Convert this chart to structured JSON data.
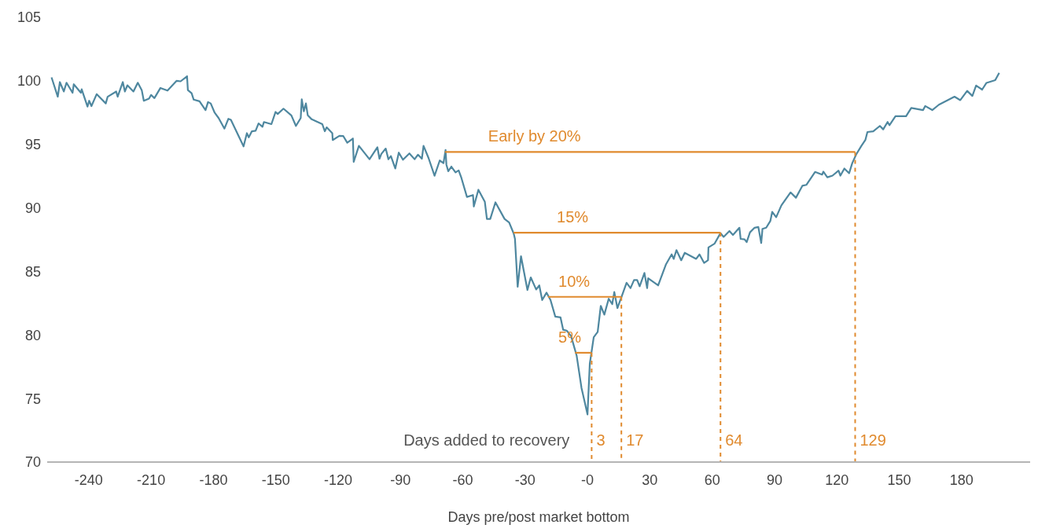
{
  "chart_data": {
    "type": "line",
    "xlabel": "Days pre/post market bottom",
    "xlim": [
      -260,
      213
    ],
    "xticks": [
      -240,
      -210,
      -180,
      -150,
      -120,
      -90,
      -60,
      -30,
      {
        "value": 0,
        "label": "-0"
      },
      30,
      60,
      90,
      120,
      150,
      180
    ],
    "ylim": [
      70,
      105
    ],
    "yticks": [
      70,
      75,
      80,
      85,
      90,
      95,
      100,
      105
    ],
    "grid": false,
    "legend": false,
    "marker": "none",
    "series": [
      {
        "color": "#4e879f",
        "line_style": "solid",
        "x": [
          -257.9,
          -254.9,
          -253.9,
          -252.0,
          -250.7,
          -247.8,
          -247.2,
          -243.8,
          -243.4,
          -240.6,
          -239.8,
          -238.7,
          -236.2,
          -231.8,
          -230.9,
          -226.8,
          -226.1,
          -223.6,
          -222.6,
          -221.4,
          -218.5,
          -216.4,
          -214.5,
          -213.5,
          -211.0,
          -210.0,
          -208.4,
          -205.5,
          -202.1,
          -197.7,
          -195.8,
          -192.7,
          -192.3,
          -190.5,
          -189.5,
          -186.7,
          -183.8,
          -182.6,
          -181.3,
          -179.4,
          -177.5,
          -174.7,
          -172.8,
          -171.6,
          -165.5,
          -163.9,
          -163.0,
          -161.5,
          -159.7,
          -158.3,
          -156.4,
          -155.7,
          -152.1,
          -150.1,
          -149.1,
          -146.3,
          -142.5,
          -140.3,
          -138.0,
          -137.5,
          -136.5,
          -135.5,
          -134.6,
          -132.7,
          -127.6,
          -126.4,
          -125.5,
          -122.8,
          -122.6,
          -119.4,
          -117.5,
          -115.6,
          -112.9,
          -112.5,
          -110.0,
          -104.9,
          -101.1,
          -100.1,
          -99.2,
          -97.1,
          -95.8,
          -94.6,
          -92.5,
          -90.8,
          -88.8,
          -85.7,
          -83.2,
          -81.6,
          -79.7,
          -78.9,
          -76.5,
          -73.6,
          -71.1,
          -69.3,
          -68.3,
          -67.9,
          -67.0,
          -65.5,
          -63.5,
          -62.0,
          -60.7,
          -58.0,
          -55.1,
          -54.7,
          -52.5,
          -49.4,
          -48.4,
          -46.8,
          -44.3,
          -39.9,
          -37.7,
          -35.5,
          -34.9,
          -33.6,
          -32.0,
          -28.9,
          -27.3,
          -24.7,
          -23.2,
          -21.8,
          -19.7,
          -17.8,
          -15.5,
          -13.0,
          -11.7,
          -10.0,
          -7.9,
          -5.2,
          -2.9,
          0,
          1.1,
          3.0,
          4.9,
          6.4,
          8.1,
          10.2,
          11.9,
          12.9,
          14.4,
          16.3,
          18.8,
          20.7,
          22.4,
          23.9,
          25.1,
          27.4,
          28.7,
          29.2,
          34.0,
          37.8,
          40.5,
          41.5,
          42.8,
          45.1,
          46.8,
          52.3,
          53.9,
          56.1,
          58.0,
          58.2,
          61.1,
          64.0,
          65.5,
          68.3,
          70.0,
          73.1,
          73.7,
          75.6,
          76.6,
          78.2,
          80.4,
          82.2,
          83.6,
          84.2,
          86.0,
          88.0,
          88.9,
          90.8,
          93.3,
          97.7,
          100.3,
          103.4,
          105.3,
          109.5,
          112.9,
          113.5,
          115.4,
          117.9,
          120.8,
          121.7,
          123.6,
          125.9,
          127.4,
          129.3,
          131.8,
          133.7,
          134.7,
          137.5,
          140.7,
          142.3,
          144.4,
          145.3,
          148.2,
          153.3,
          155.8,
          161.5,
          162.5,
          165.9,
          169.1,
          176.6,
          179.4,
          182.7,
          185.2,
          187.0,
          189.9,
          192.0,
          196.2,
          198.1
        ],
        "values": [
          100.27,
          98.75,
          99.9,
          99.16,
          99.85,
          99.06,
          99.73,
          99.06,
          99.33,
          97.97,
          98.43,
          98.01,
          98.95,
          98.22,
          98.75,
          99.16,
          98.75,
          99.9,
          99.16,
          99.65,
          99.16,
          99.85,
          99.27,
          98.43,
          98.6,
          98.89,
          98.64,
          99.44,
          99.23,
          100.0,
          99.96,
          100.36,
          99.27,
          99.02,
          98.52,
          98.39,
          97.7,
          98.33,
          98.22,
          97.49,
          97.07,
          96.24,
          97.01,
          96.93,
          94.84,
          95.88,
          95.55,
          96.03,
          96.07,
          96.65,
          96.38,
          96.76,
          96.59,
          97.55,
          97.39,
          97.81,
          97.28,
          96.45,
          97.07,
          98.54,
          97.6,
          98.22,
          97.28,
          96.97,
          96.59,
          96.03,
          96.34,
          95.88,
          95.34,
          95.67,
          95.65,
          95.13,
          95.46,
          93.62,
          94.88,
          93.83,
          94.77,
          93.87,
          94.25,
          94.67,
          93.83,
          94.08,
          93.1,
          94.35,
          93.79,
          94.29,
          93.83,
          94.19,
          93.87,
          94.88,
          93.93,
          92.53,
          93.73,
          93.52,
          94.56,
          93.41,
          92.89,
          93.25,
          92.79,
          92.95,
          92.37,
          90.86,
          91.01,
          90.11,
          91.43,
          90.48,
          89.13,
          89.13,
          90.44,
          89.13,
          88.85,
          87.98,
          87.56,
          83.79,
          86.2,
          83.54,
          84.53,
          83.58,
          83.9,
          82.75,
          83.33,
          82.75,
          81.45,
          81.39,
          80.41,
          80.34,
          79.92,
          78.36,
          75.85,
          73.75,
          77.73,
          79.82,
          80.24,
          82.29,
          81.6,
          82.85,
          82.43,
          83.38,
          82.12,
          82.96,
          84.11,
          83.69,
          84.32,
          84.32,
          83.83,
          84.88,
          83.69,
          84.46,
          83.9,
          85.57,
          86.34,
          85.99,
          86.68,
          85.88,
          86.47,
          85.99,
          86.34,
          85.67,
          85.88,
          86.89,
          87.18,
          88.02,
          87.72,
          88.18,
          87.87,
          88.44,
          87.56,
          87.52,
          87.31,
          88.08,
          88.44,
          88.5,
          87.24,
          88.35,
          88.44,
          88.98,
          89.69,
          89.27,
          90.2,
          91.22,
          90.8,
          91.74,
          91.81,
          92.83,
          92.62,
          92.85,
          92.41,
          92.54,
          92.93,
          92.54,
          93.1,
          92.73,
          93.52,
          94.21,
          94.88,
          95.34,
          95.97,
          96.03,
          96.45,
          96.18,
          96.76,
          96.51,
          97.22,
          97.22,
          97.87,
          97.7,
          98.02,
          97.7,
          98.12,
          98.75,
          98.48,
          99.21,
          98.81,
          99.63,
          99.31,
          99.84,
          100.05,
          100.63
        ]
      },
      {
        "name": "Early by 20%",
        "color": "#e08a2e",
        "line_style": "solid",
        "x": [
          -68.6,
          128.8
        ],
        "values": [
          94.4,
          94.4
        ]
      },
      {
        "name": "15%",
        "color": "#e08a2e",
        "line_style": "solid",
        "x": [
          -35.6,
          64
        ],
        "values": [
          88.05,
          88.05
        ]
      },
      {
        "name": "10%",
        "color": "#e08a2e",
        "line_style": "solid",
        "x": [
          -19,
          16.3
        ],
        "values": [
          83.0,
          83.0
        ]
      },
      {
        "name": "5%",
        "color": "#e08a2e",
        "line_style": "solid",
        "x": [
          -6,
          2
        ],
        "values": [
          78.6,
          78.6
        ]
      },
      {
        "name": "3",
        "color": "#e08a2e",
        "line_style": "dashed",
        "x": [
          2,
          2
        ],
        "values": [
          78.6,
          70
        ]
      },
      {
        "name": "17",
        "color": "#e08a2e",
        "line_style": "dashed",
        "x": [
          16.3,
          16.3
        ],
        "values": [
          83.0,
          70
        ]
      },
      {
        "name": "64",
        "color": "#e08a2e",
        "line_style": "dashed",
        "x": [
          64,
          64
        ],
        "values": [
          88.05,
          70
        ]
      },
      {
        "name": "129",
        "color": "#e08a2e",
        "line_style": "dashed",
        "x": [
          128.8,
          128.8
        ],
        "values": [
          94.4,
          70
        ]
      }
    ],
    "annotations": [
      "Days added to recovery"
    ]
  }
}
